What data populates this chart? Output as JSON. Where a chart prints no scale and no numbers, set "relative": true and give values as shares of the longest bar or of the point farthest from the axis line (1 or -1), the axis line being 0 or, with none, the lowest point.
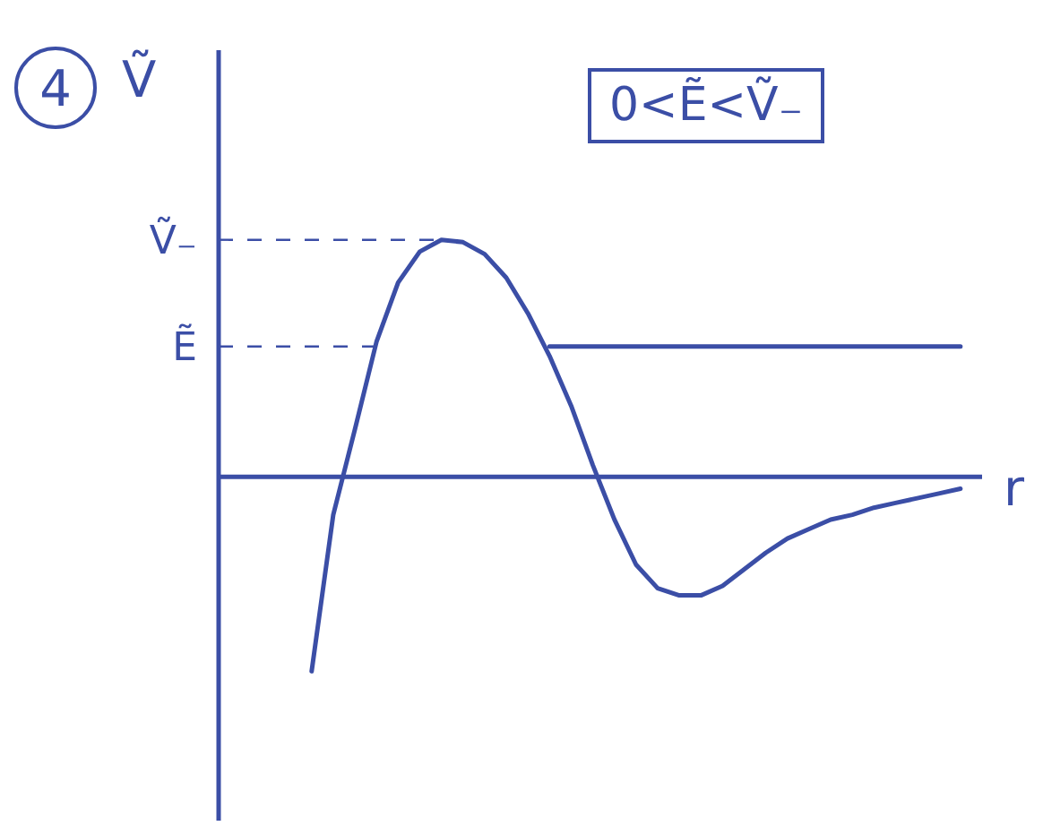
{
  "chart_data": {
    "type": "line",
    "relative": true,
    "xlabel": "r",
    "ylabel": "Ṽ",
    "annotations": [
      "4",
      "0<Ẽ<Ṽ₋"
    ],
    "categories": [
      null,
      null,
      null,
      null,
      null,
      null,
      null,
      null,
      null,
      null,
      null,
      null,
      null,
      null,
      null,
      null,
      null,
      null,
      null,
      null,
      null,
      null,
      null,
      null,
      null,
      null,
      null,
      null,
      null,
      null,
      null,
      null,
      null,
      null,
      null
    ],
    "series": [
      {
        "color": "#3b4ea6",
        "values": [
          null,
          null,
          null,
          null,
          -0.82,
          -0.16,
          0.2,
          0.57,
          0.82,
          0.95,
          1.0,
          0.99,
          0.94,
          0.84,
          0.69,
          0.51,
          0.3,
          0.05,
          -0.18,
          -0.37,
          -0.47,
          -0.5,
          -0.5,
          -0.46,
          -0.39,
          -0.32,
          -0.26,
          -0.22,
          -0.18,
          -0.16,
          -0.13,
          -0.11,
          -0.09,
          -0.07,
          -0.05
        ]
      },
      {
        "color": "#3b4ea6",
        "values": [
          null,
          null,
          null,
          null,
          null,
          null,
          null,
          null,
          null,
          null,
          null,
          null,
          null,
          null,
          null,
          0.55,
          0.55,
          0.55,
          0.55,
          0.55,
          0.55,
          0.55,
          0.55,
          0.55,
          0.55,
          0.55,
          0.55,
          0.55,
          0.55,
          0.55,
          0.55,
          0.55,
          0.55,
          0.55,
          0.55
        ]
      }
    ],
    "ref_lines": [
      {
        "axis": "y",
        "value": 0,
        "color": "#3b4ea6",
        "line_style": "solid"
      },
      {
        "axis": "y",
        "value": 1.0,
        "label": "Ṽ₋",
        "color": "#3b4ea6",
        "line_style": "dashed"
      },
      {
        "axis": "y",
        "value": 0.55,
        "label": "Ẽ",
        "color": "#3b4ea6",
        "line_style": "dashed"
      }
    ],
    "marker": "none",
    "line_style": "solid"
  }
}
